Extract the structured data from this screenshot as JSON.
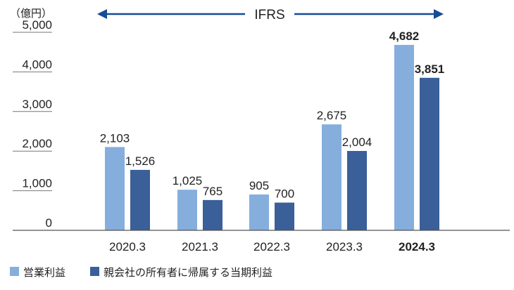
{
  "unit_label": "（億円）",
  "ifrs_label": "IFRS",
  "chart_data": {
    "type": "bar",
    "categories": [
      "2020.3",
      "2021.3",
      "2022.3",
      "2023.3",
      "2024.3"
    ],
    "series": [
      {
        "name": "営業利益",
        "values": [
          2103,
          1025,
          905,
          2675,
          4682
        ],
        "labels": [
          "2,103",
          "1,025",
          "905",
          "2,675",
          "4,682"
        ]
      },
      {
        "name": "親会社の所有者に帰属する当期利益",
        "values": [
          1526,
          765,
          700,
          2004,
          3851
        ],
        "labels": [
          "1,526",
          "765",
          "700",
          "2,004",
          "3,851"
        ]
      }
    ],
    "ylim": [
      0,
      5000
    ],
    "yticks": [
      "0",
      "1,000",
      "2,000",
      "3,000",
      "4,000",
      "5,000"
    ],
    "highlight_category": "2024.3",
    "grid": false,
    "legend_position": "bottom-left",
    "colors": {
      "series1": "#85aedd",
      "series2": "#3a5f99",
      "arrow": "#164c97",
      "axis": "#555555",
      "text": "#222222"
    }
  }
}
